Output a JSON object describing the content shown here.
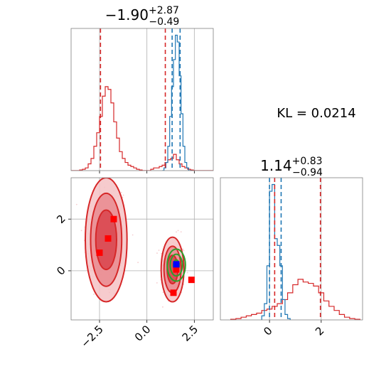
{
  "chart_data": [
    {
      "type": "histogram",
      "panel": "marginal-x",
      "title_main": "−1.90",
      "title_sup": "+2.87",
      "title_sub": "−0.49",
      "xlim": [
        -4.0,
        3.5
      ],
      "grid": true,
      "series": [
        {
          "color": "#d62728",
          "bin_edges": [
            -4.0,
            -3.85,
            -3.7,
            -3.55,
            -3.4,
            -3.25,
            -3.1,
            -2.95,
            -2.8,
            -2.65,
            -2.5,
            -2.35,
            -2.2,
            -2.05,
            -1.9,
            -1.75,
            -1.6,
            -1.45,
            -1.3,
            -1.15,
            -1.0,
            -0.85,
            -0.7,
            -0.55,
            -0.4,
            -0.25,
            -0.1,
            0.05,
            0.2,
            0.35,
            0.5,
            0.65,
            0.8,
            0.95,
            1.1,
            1.25,
            1.4,
            1.55,
            1.7,
            1.85,
            2.0,
            2.15,
            2.3,
            2.45,
            2.6,
            2.75,
            2.9,
            3.05,
            3.2,
            3.35,
            3.5
          ],
          "heights": [
            0,
            0,
            0,
            0.005,
            0.01,
            0.02,
            0.05,
            0.09,
            0.18,
            0.28,
            0.4,
            0.55,
            0.62,
            0.6,
            0.5,
            0.36,
            0.24,
            0.14,
            0.09,
            0.06,
            0.04,
            0.03,
            0.02,
            0.01,
            0.005,
            0,
            0,
            0,
            0.01,
            0.02,
            0.02,
            0.03,
            0.04,
            0.06,
            0.08,
            0.09,
            0.12,
            0.08,
            0.05,
            0.03,
            0.02,
            0.01,
            0.005,
            0,
            0,
            0,
            0,
            0,
            0,
            0
          ]
        },
        {
          "color": "#1f77b4",
          "bin_edges": [
            0.8,
            0.9,
            1.0,
            1.1,
            1.2,
            1.3,
            1.4,
            1.5,
            1.6,
            1.7,
            1.8,
            1.9,
            2.0,
            2.1,
            2.2,
            2.3,
            2.4
          ],
          "heights": [
            0,
            0.02,
            0.06,
            0.18,
            0.4,
            0.62,
            0.82,
            1.0,
            0.95,
            0.7,
            0.42,
            0.18,
            0.06,
            0.02,
            0,
            0
          ]
        }
      ],
      "vlines": [
        {
          "x": -2.45,
          "color": "#d62728"
        },
        {
          "x": 0.97,
          "color": "#d62728"
        },
        {
          "x": 1.33,
          "color": "#1f77b4"
        },
        {
          "x": 1.75,
          "color": "#1f77b4"
        }
      ]
    },
    {
      "type": "histogram",
      "panel": "marginal-y",
      "title_main": "1.14",
      "title_sup": "+0.83",
      "title_sub": "−0.94",
      "xlim": [
        -1.9,
        3.6
      ],
      "xticks": [
        0,
        2
      ],
      "xticklabels": [
        "0",
        "2"
      ],
      "grid": true,
      "series": [
        {
          "color": "#d62728",
          "bin_edges": [
            -1.5,
            -1.3,
            -1.1,
            -0.9,
            -0.7,
            -0.5,
            -0.3,
            -0.1,
            0.1,
            0.3,
            0.5,
            0.7,
            0.9,
            1.1,
            1.3,
            1.5,
            1.7,
            1.9,
            2.1,
            2.3,
            2.5,
            2.7,
            2.9,
            3.1,
            3.3,
            3.5
          ],
          "heights": [
            0.005,
            0.01,
            0.02,
            0.03,
            0.04,
            0.05,
            0.07,
            0.08,
            0.1,
            0.12,
            0.15,
            0.2,
            0.26,
            0.3,
            0.28,
            0.27,
            0.25,
            0.2,
            0.14,
            0.1,
            0.07,
            0.04,
            0.02,
            0.01,
            0.005
          ]
        },
        {
          "color": "#1f77b4",
          "bin_edges": [
            -0.3,
            -0.2,
            -0.1,
            0.0,
            0.1,
            0.2,
            0.3,
            0.4,
            0.5,
            0.6,
            0.7,
            0.8
          ],
          "heights": [
            0.03,
            0.12,
            0.4,
            0.95,
            1.0,
            0.6,
            0.55,
            0.4,
            0.15,
            0.04,
            0.01
          ]
        }
      ],
      "vlines": [
        {
          "x": 0.2,
          "color": "#d62728"
        },
        {
          "x": 1.97,
          "color": "#d62728"
        },
        {
          "x": 0.0,
          "color": "#1f77b4"
        },
        {
          "x": 0.45,
          "color": "#1f77b4"
        }
      ]
    },
    {
      "type": "scatter",
      "panel": "joint",
      "xlim": [
        -4.0,
        3.5
      ],
      "ylim": [
        -1.9,
        3.6
      ],
      "xticks": [
        -2.5,
        0.0,
        2.5
      ],
      "xticklabels": [
        "−2.5",
        "0.0",
        "2.5"
      ],
      "yticks": [
        0,
        2
      ],
      "yticklabels": [
        "0",
        "2"
      ],
      "grid": true,
      "contours": [
        {
          "cx": -2.15,
          "cy": 1.2,
          "rx": [
            1.1,
            0.82,
            0.55
          ],
          "ry": [
            2.4,
            1.8,
            1.15
          ],
          "color": "#d62728"
        },
        {
          "cx": 1.35,
          "cy": 0.05,
          "rx": [
            0.6,
            0.45,
            0.28
          ],
          "ry": [
            1.25,
            0.9,
            0.55
          ],
          "color": "#d62728"
        },
        {
          "cx": 1.55,
          "cy": 0.22,
          "rx": [
            0.48,
            0.32,
            0.16
          ],
          "ry": [
            0.62,
            0.42,
            0.2
          ],
          "color": "#2ca02c"
        }
      ],
      "red_markers": [
        {
          "x": -2.5,
          "y": 0.7
        },
        {
          "x": -2.05,
          "y": 1.25
        },
        {
          "x": -1.75,
          "y": 2.0
        },
        {
          "x": 1.4,
          "y": -0.85
        },
        {
          "x": 2.35,
          "y": -0.35
        },
        {
          "x": 1.55,
          "y": 0.05
        }
      ],
      "blue_marker": {
        "x": 1.55,
        "y": 0.25
      }
    }
  ],
  "kl_text": "KL = 0.0214"
}
